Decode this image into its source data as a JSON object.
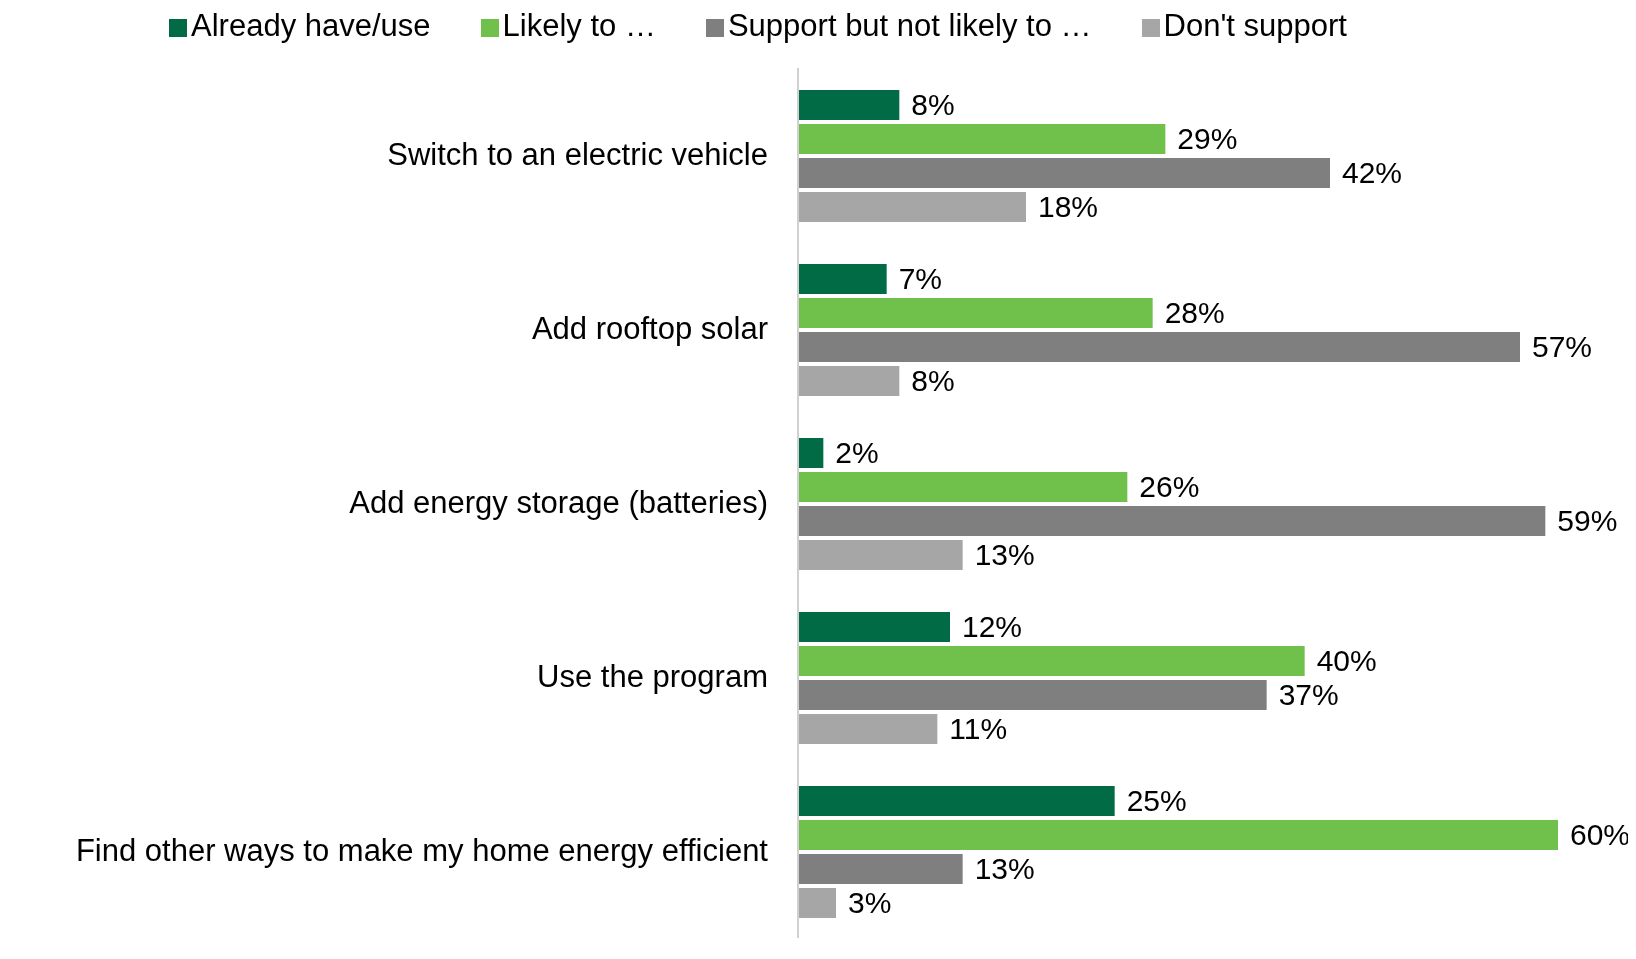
{
  "chart_data": {
    "type": "bar",
    "orientation": "horizontal",
    "legend": "top",
    "tick_labels": "y",
    "categories": [
      "Switch to an electric vehicle",
      "Add rooftop solar",
      "Add energy storage (batteries)",
      "Use the program",
      "Find other ways to make my home energy efficient"
    ],
    "series": [
      {
        "name": "Already have/use",
        "color": "#006b45",
        "values": [
          8,
          7,
          2,
          12,
          25
        ],
        "value_labels": [
          "8%",
          "7%",
          "2%",
          "12%",
          "25%"
        ]
      },
      {
        "name": "Likely to …",
        "color": "#70c04c",
        "values": [
          29,
          28,
          26,
          40,
          60
        ],
        "value_labels": [
          "29%",
          "28%",
          "26%",
          "40%",
          "60%"
        ]
      },
      {
        "name": "Support but not likely to …",
        "color": "#7f7f7f",
        "values": [
          42,
          57,
          59,
          37,
          13
        ],
        "value_labels": [
          "42%",
          "57%",
          "59%",
          "37%",
          "13%"
        ]
      },
      {
        "name": "Don't support",
        "color": "#a6a6a6",
        "values": [
          18,
          8,
          13,
          11,
          3
        ],
        "value_labels": [
          "18%",
          "8%",
          "13%",
          "11%",
          "3%"
        ]
      }
    ]
  }
}
